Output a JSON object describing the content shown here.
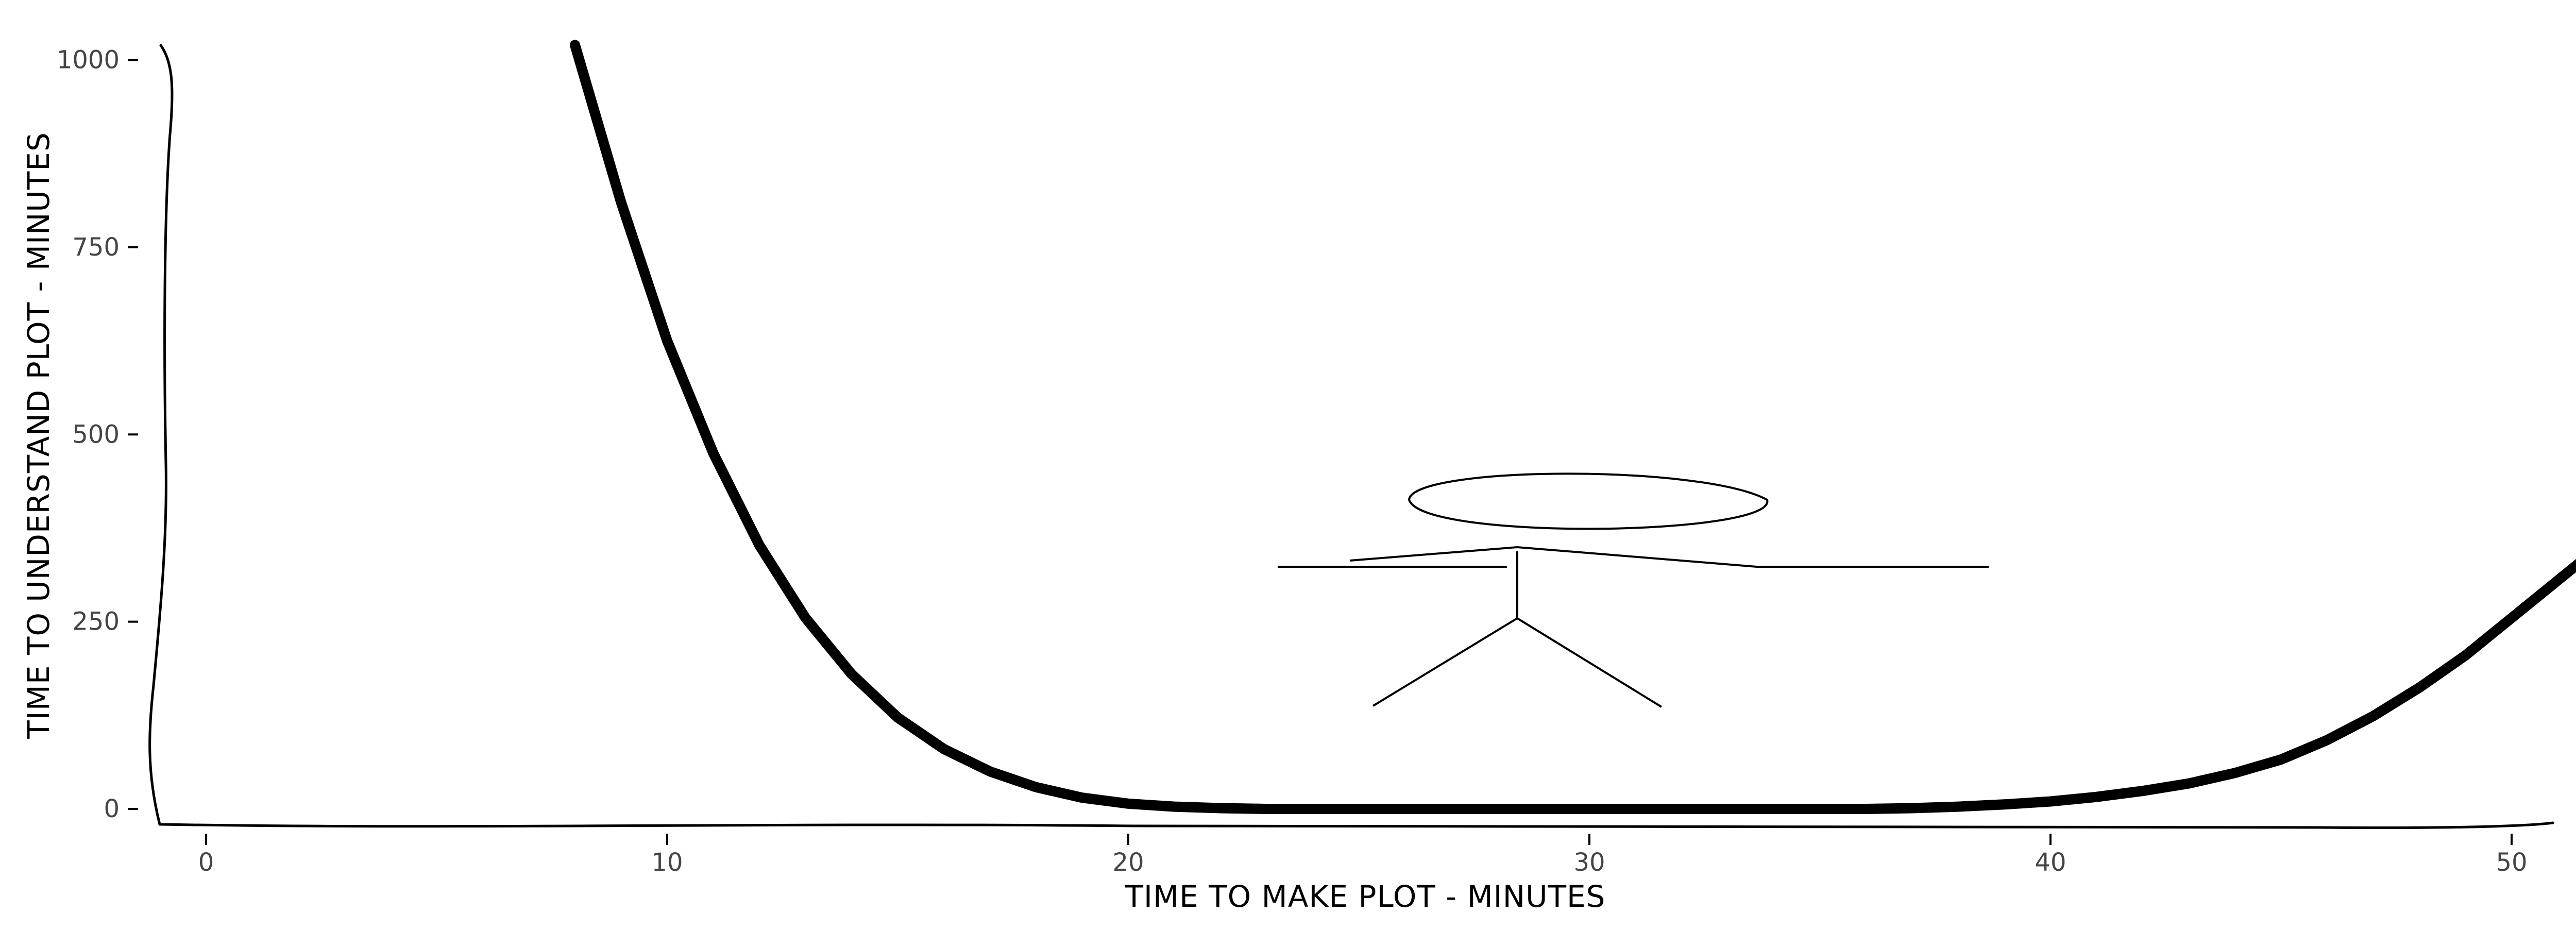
{
  "chart_data": {
    "type": "line",
    "style": "xkcd hand-drawn",
    "title": "",
    "xlabel": "TIME TO MAKE PLOT - MINUTES",
    "ylabel": "TIME TO UNDERSTAND PLOT - MINUTES",
    "xlim": [
      -1,
      51.5
    ],
    "ylim": [
      -20,
      1020
    ],
    "xticks": [
      0,
      10,
      20,
      30,
      40,
      50
    ],
    "xtick_labels": [
      "0",
      "10",
      "20",
      "30",
      "40",
      "50"
    ],
    "yticks": [
      0,
      250,
      500,
      750,
      1000
    ],
    "ytick_labels": [
      "0",
      "250",
      "500",
      "750",
      "1000"
    ],
    "grid": false,
    "legend": "none",
    "series": [
      {
        "color": "#000000",
        "x": [
          8,
          9,
          10,
          11,
          12,
          13,
          14,
          15,
          16,
          17,
          18,
          19,
          20,
          21,
          22,
          23,
          24,
          25,
          26,
          27,
          28,
          29,
          30,
          31,
          32,
          33,
          34,
          35,
          36,
          37,
          38,
          39,
          40,
          41,
          42,
          43,
          44,
          45,
          46,
          47,
          48,
          49,
          50,
          51.5
        ],
        "y": [
          1020,
          810,
          625,
          475,
          352,
          255,
          180,
          122,
          80,
          50,
          29,
          15,
          7,
          3,
          1,
          0,
          0,
          0,
          0,
          0,
          0,
          0,
          0,
          0,
          0,
          0,
          0,
          0,
          0,
          1,
          3,
          6,
          10,
          16,
          24,
          34,
          48,
          66,
          92,
          124,
          162,
          205,
          255,
          330
        ]
      }
    ],
    "annotations": [
      {
        "type": "stick-figure-drawing",
        "description_free": true
      }
    ]
  }
}
